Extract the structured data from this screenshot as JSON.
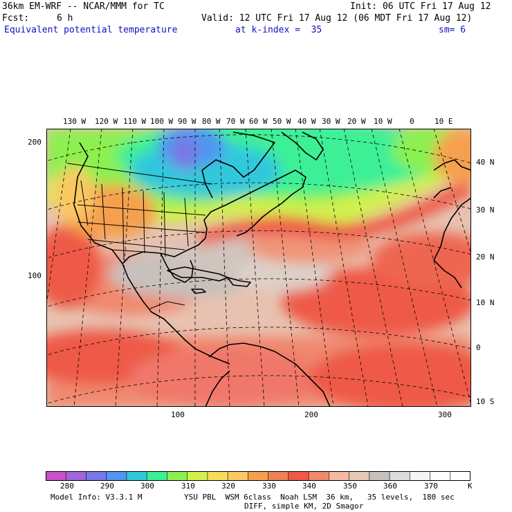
{
  "header": {
    "model": "36km EM-WRF -- NCAR/MMM for TC",
    "init": "Init: 06 UTC Fri 17 Aug 12",
    "fcst_label": "Fcst:",
    "fcst_value": "6 h",
    "valid": "Valid: 12 UTC Fri 17 Aug 12 (06 MDT Fri 17 Aug 12)",
    "field": "Equivalent potential temperature",
    "level": "at k-index =  35",
    "smoothing": "sm= 6"
  },
  "map": {
    "lon_labels": [
      "130 W",
      "120 W",
      "110 W",
      "100 W",
      "90 W",
      "80 W",
      "70 W",
      "60 W",
      "50 W",
      "40 W",
      "30 W",
      "20 W",
      "10 W",
      "0",
      "10 E"
    ],
    "lat_labels": [
      "40 N",
      "30 N",
      "20 N",
      "10 N",
      "0",
      "10 S"
    ],
    "y_grid_labels": [
      "200",
      "100"
    ],
    "x_grid_labels": [
      "100",
      "200",
      "300"
    ]
  },
  "colorbar": {
    "colors": [
      "#c850c8",
      "#a064dc",
      "#7878e6",
      "#5096f0",
      "#32c8dc",
      "#3cf096",
      "#8cf050",
      "#d2f050",
      "#f5dc5a",
      "#fac864",
      "#f5a050",
      "#ee8255",
      "#ee5a46",
      "#f0886e",
      "#f5b9a0",
      "#e6c8b4",
      "#c8c0bc",
      "#dcdcdc",
      "#f5f5f5",
      "#ffffff",
      "#ffffff"
    ],
    "tick_labels": [
      "280",
      "290",
      "300",
      "310",
      "320",
      "330",
      "340",
      "350",
      "360",
      "370"
    ],
    "unit": "K"
  },
  "footer": {
    "line1_left": "Model Info: V3.3.1 M",
    "line1_right": "YSU PBL  WSM 6class  Noah LSM  36 km,   35 levels,  180 sec",
    "line2": "DIFF, simple KM, 2D Smagor"
  }
}
